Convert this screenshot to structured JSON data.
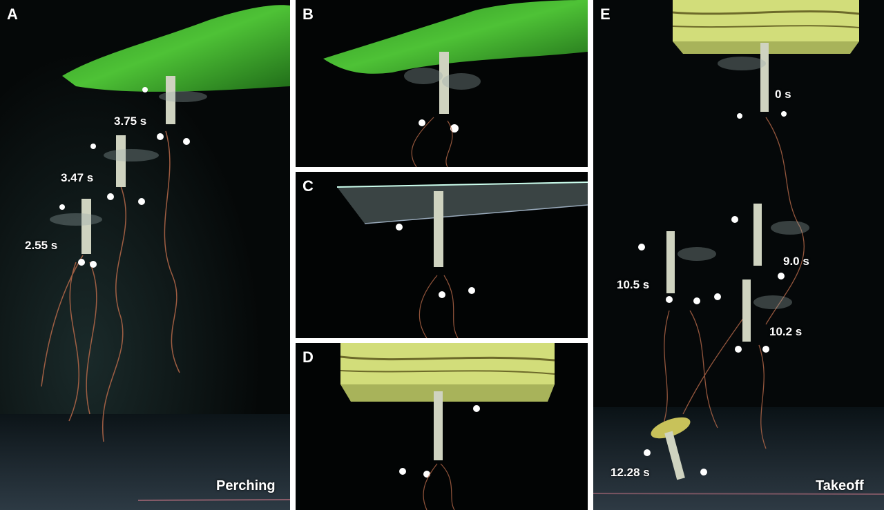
{
  "panels": {
    "a": {
      "label": "A",
      "times": [
        "3.75 s",
        "3.47 s",
        "2.55 s"
      ],
      "caption": "Perching"
    },
    "b": {
      "label": "B"
    },
    "c": {
      "label": "C"
    },
    "d": {
      "label": "D"
    },
    "e": {
      "label": "E",
      "times": [
        "0 s",
        "9.0 s",
        "10.5 s",
        "10.2 s",
        "12.28 s"
      ],
      "caption": "Takeoff"
    }
  },
  "colors": {
    "leaf": "#3fb52a",
    "wood": "#d2dd7a",
    "wire": "#b86a4a",
    "background": "#000000"
  }
}
